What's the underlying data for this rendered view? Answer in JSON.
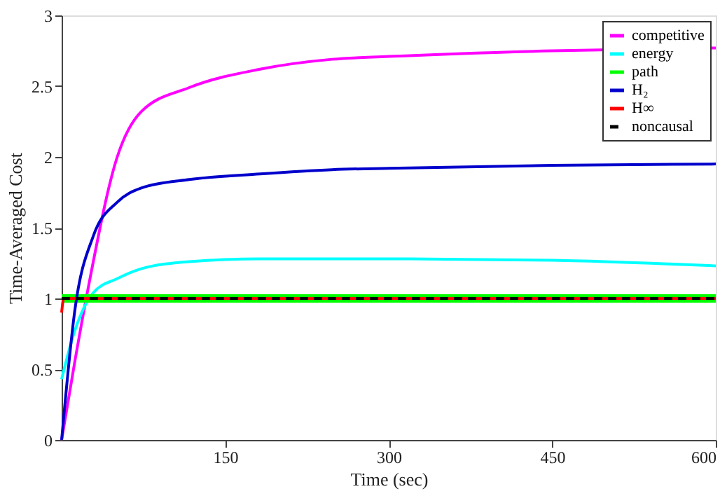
{
  "chart_data": {
    "type": "line",
    "xlabel": "Time (sec)",
    "ylabel": "Time-Averaged Cost",
    "xlim": [
      0,
      600
    ],
    "ylim": [
      0,
      3
    ],
    "xticks": [
      150,
      300,
      450,
      600
    ],
    "yticks": [
      0,
      0.5,
      1,
      1.5,
      2,
      2.5,
      3
    ],
    "grid": false,
    "legend": "top right",
    "line_style": "solid",
    "marker": "none",
    "series": [
      {
        "name": "competitive",
        "color": "#ff00ff",
        "x": [
          0,
          12,
          25,
          51,
          73,
          117,
          182,
          248,
          300,
          450,
          600
        ],
        "values": [
          0,
          0.55,
          1.1,
          2.0,
          2.32,
          2.49,
          2.62,
          2.69,
          2.71,
          2.75,
          2.77
        ]
      },
      {
        "name": "energy",
        "color": "#00ffff",
        "x": [
          0,
          12,
          29,
          51,
          73,
          117,
          182,
          248,
          300,
          450,
          600
        ],
        "values": [
          0.43,
          0.77,
          1.04,
          1.14,
          1.21,
          1.26,
          1.28,
          1.28,
          1.28,
          1.27,
          1.23
        ]
      },
      {
        "name": "path",
        "color": "#00ff00",
        "x": [
          0,
          600
        ],
        "values": [
          1,
          1
        ]
      },
      {
        "name": "H₂",
        "color": "#0000cc",
        "x": [
          0,
          12,
          29,
          51,
          73,
          117,
          182,
          248,
          300,
          450,
          600
        ],
        "values": [
          0,
          0.91,
          1.44,
          1.68,
          1.78,
          1.84,
          1.88,
          1.91,
          1.92,
          1.94,
          1.95
        ]
      },
      {
        "name": "H∞",
        "color": "#ff0000",
        "x": [
          0,
          2,
          600
        ],
        "values": [
          0.9,
          1,
          1
        ]
      },
      {
        "name": "noncausal",
        "color": "#000000",
        "x": [
          0,
          600
        ],
        "values": [
          1,
          1
        ],
        "line_style": "dashed"
      }
    ]
  }
}
